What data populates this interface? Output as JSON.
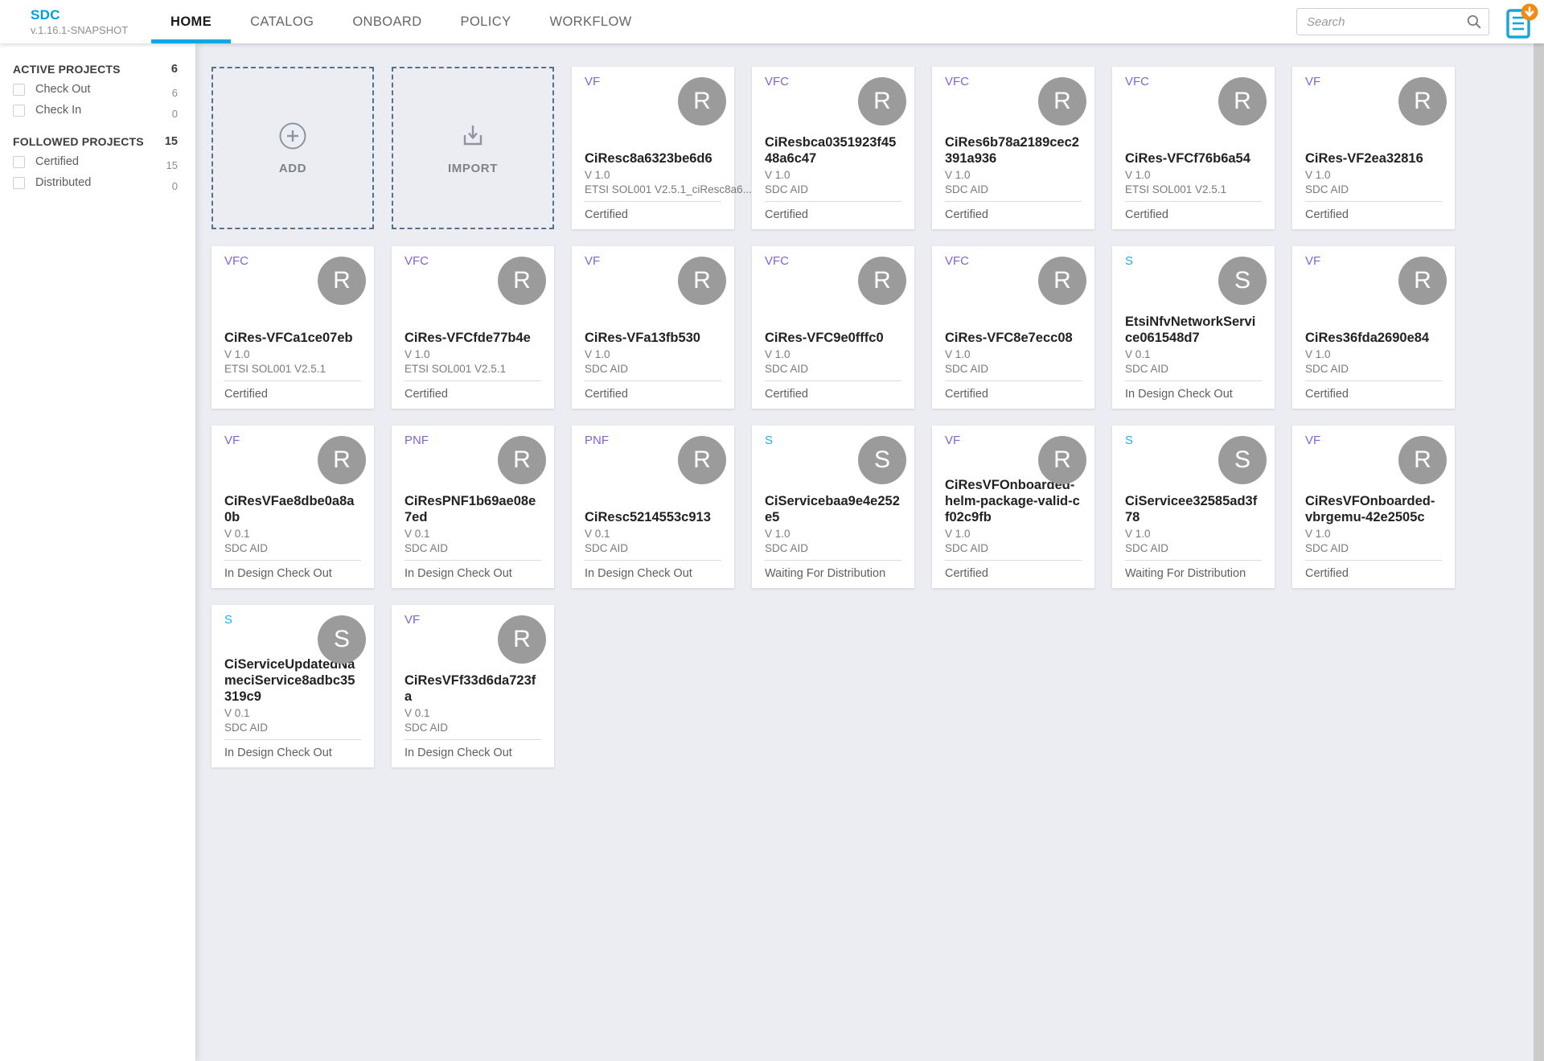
{
  "header": {
    "logo": {
      "title": "SDC",
      "version": "v.1.16.1-SNAPSHOT"
    },
    "nav": [
      {
        "label": "HOME",
        "active": true
      },
      {
        "label": "CATALOG",
        "active": false
      },
      {
        "label": "ONBOARD",
        "active": false
      },
      {
        "label": "POLICY",
        "active": false
      },
      {
        "label": "WORKFLOW",
        "active": false
      }
    ],
    "search": {
      "placeholder": "Search"
    },
    "notification": {
      "icon": "document-icon",
      "badge_icon": "download-arrow"
    }
  },
  "sidebar": {
    "sections": [
      {
        "title": "ACTIVE PROJECTS",
        "count": "6",
        "items": [
          {
            "label": "Check Out",
            "count": "6"
          },
          {
            "label": "Check In",
            "count": "0"
          }
        ]
      },
      {
        "title": "FOLLOWED PROJECTS",
        "count": "15",
        "items": [
          {
            "label": "Certified",
            "count": "15"
          },
          {
            "label": "Distributed",
            "count": "0"
          }
        ]
      }
    ]
  },
  "main": {
    "tiles": [
      {
        "label": "ADD",
        "icon": "plus-circle-icon"
      },
      {
        "label": "IMPORT",
        "icon": "import-icon"
      }
    ],
    "cards": [
      {
        "type": "VF",
        "avatar": "R",
        "name": "CiResc8a6323be6d6",
        "version": "V 1.0",
        "subtitle": "ETSI SOL001 V2.5.1_ciResc8a6...",
        "status": "Certified"
      },
      {
        "type": "VFC",
        "avatar": "R",
        "name": "CiResbca0351923f4548a6c47",
        "version": "V 1.0",
        "subtitle": "SDC AID",
        "status": "Certified"
      },
      {
        "type": "VFC",
        "avatar": "R",
        "name": "CiRes6b78a2189cec2391a936",
        "version": "V 1.0",
        "subtitle": "SDC AID",
        "status": "Certified"
      },
      {
        "type": "VFC",
        "avatar": "R",
        "name": "CiRes-VFCf76b6a54",
        "version": "V 1.0",
        "subtitle": "ETSI SOL001 V2.5.1",
        "status": "Certified"
      },
      {
        "type": "VF",
        "avatar": "R",
        "name": "CiRes-VF2ea32816",
        "version": "V 1.0",
        "subtitle": "SDC AID",
        "status": "Certified"
      },
      {
        "type": "VFC",
        "avatar": "R",
        "name": "CiRes-VFCa1ce07eb",
        "version": "V 1.0",
        "subtitle": "ETSI SOL001 V2.5.1",
        "status": "Certified"
      },
      {
        "type": "VFC",
        "avatar": "R",
        "name": "CiRes-VFCfde77b4e",
        "version": "V 1.0",
        "subtitle": "ETSI SOL001 V2.5.1",
        "status": "Certified"
      },
      {
        "type": "VF",
        "avatar": "R",
        "name": "CiRes-VFa13fb530",
        "version": "V 1.0",
        "subtitle": "SDC AID",
        "status": "Certified"
      },
      {
        "type": "VFC",
        "avatar": "R",
        "name": "CiRes-VFC9e0fffc0",
        "version": "V 1.0",
        "subtitle": "SDC AID",
        "status": "Certified"
      },
      {
        "type": "VFC",
        "avatar": "R",
        "name": "CiRes-VFC8e7ecc08",
        "version": "V 1.0",
        "subtitle": "SDC AID",
        "status": "Certified"
      },
      {
        "type": "S",
        "avatar": "S",
        "name": "EtsiNfvNetworkService061548d7",
        "version": "V 0.1",
        "subtitle": "SDC AID",
        "status": "In Design Check Out"
      },
      {
        "type": "VF",
        "avatar": "R",
        "name": "CiRes36fda2690e84",
        "version": "V 1.0",
        "subtitle": "SDC AID",
        "status": "Certified"
      },
      {
        "type": "VF",
        "avatar": "R",
        "name": "CiResVFae8dbe0a8a0b",
        "version": "V 0.1",
        "subtitle": "SDC AID",
        "status": "In Design Check Out"
      },
      {
        "type": "PNF",
        "avatar": "R",
        "name": "CiResPNF1b69ae08e7ed",
        "version": "V 0.1",
        "subtitle": "SDC AID",
        "status": "In Design Check Out"
      },
      {
        "type": "PNF",
        "avatar": "R",
        "name": "CiResc5214553c913",
        "version": "V 0.1",
        "subtitle": "SDC AID",
        "status": "In Design Check Out"
      },
      {
        "type": "S",
        "avatar": "S",
        "name": "CiServicebaa9e4e252e5",
        "version": "V 1.0",
        "subtitle": "SDC AID",
        "status": "Waiting For Distribution"
      },
      {
        "type": "VF",
        "avatar": "R",
        "name": "CiResVFOnboarded-helm-package-valid-cf02c9fb",
        "version": "V 1.0",
        "subtitle": "SDC AID",
        "status": "Certified"
      },
      {
        "type": "S",
        "avatar": "S",
        "name": "CiServicee32585ad3f78",
        "version": "V 1.0",
        "subtitle": "SDC AID",
        "status": "Waiting For Distribution"
      },
      {
        "type": "VF",
        "avatar": "R",
        "name": "CiResVFOnboarded-vbrgemu-42e2505c",
        "version": "V 1.0",
        "subtitle": "SDC AID",
        "status": "Certified"
      },
      {
        "type": "S",
        "avatar": "S",
        "name": "CiServiceUpdatedNameciService8adbc35319c9",
        "version": "V 0.1",
        "subtitle": "SDC AID",
        "status": "In Design Check Out"
      },
      {
        "type": "VF",
        "avatar": "R",
        "name": "CiResVFf33d6da723fa",
        "version": "V 0.1",
        "subtitle": "SDC AID",
        "status": "In Design Check Out"
      }
    ]
  },
  "colors": {
    "brand_blue": "#009fdb",
    "active_tab_underline": "#13a5e5",
    "resource_type_purple": "#8363d4",
    "service_type_blue": "#1fb1e6",
    "avatar_gray": "#9b9b9b",
    "badge_orange": "#f28a16",
    "doc_icon_blue": "#12a6e0",
    "main_background": "#ebedf2",
    "dashed_tile_border": "#54708a"
  }
}
